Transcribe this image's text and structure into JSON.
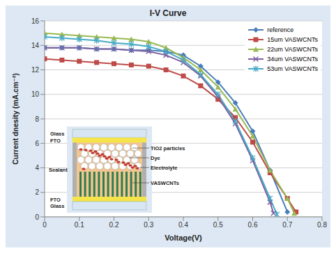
{
  "chart_data": {
    "type": "line",
    "title": "I-V Curve",
    "x_label": "Voltage(V)",
    "y_label": "Current dnesity (mA.cm⁻²)",
    "xlim": [
      0,
      0.8
    ],
    "xticks": [
      0,
      0.1,
      0.2,
      0.3,
      0.4,
      0.5,
      0.6,
      0.7,
      0.8
    ],
    "ylim": [
      0,
      16
    ],
    "yticks": [
      0,
      2,
      4,
      6,
      8,
      10,
      12,
      14,
      16
    ],
    "grid": true,
    "legend": "top-right",
    "annotations": [
      "Glass",
      "FTO",
      "Sealant",
      "TiO2 particles",
      "Dye",
      "Electrolyte",
      "VASWCNTs",
      "FTO",
      "Glass"
    ],
    "series": [
      {
        "name": "reference",
        "color": "#4A7EBB",
        "marker": "diamond",
        "x": [
          0,
          0.05,
          0.1,
          0.15,
          0.2,
          0.25,
          0.3,
          0.35,
          0.4,
          0.45,
          0.5,
          0.55,
          0.6,
          0.65,
          0.7
        ],
        "values": [
          13.8,
          13.8,
          13.8,
          13.7,
          13.7,
          13.6,
          13.6,
          13.5,
          13.2,
          12.3,
          11.0,
          9.3,
          7.0,
          3.8,
          0.4
        ]
      },
      {
        "name": "15um VASWCNTs",
        "color": "#BE4B48",
        "marker": "square",
        "x": [
          0,
          0.05,
          0.1,
          0.15,
          0.2,
          0.25,
          0.3,
          0.35,
          0.4,
          0.45,
          0.5,
          0.55,
          0.6,
          0.65,
          0.7,
          0.725
        ],
        "values": [
          12.9,
          12.8,
          12.7,
          12.6,
          12.5,
          12.4,
          12.3,
          12.0,
          11.5,
          10.7,
          9.6,
          8.1,
          6.1,
          3.6,
          1.5,
          0.4
        ]
      },
      {
        "name": "22um VASWCNTs",
        "color": "#98B954",
        "marker": "triangle",
        "x": [
          0,
          0.05,
          0.1,
          0.15,
          0.2,
          0.25,
          0.3,
          0.35,
          0.4,
          0.45,
          0.5,
          0.55,
          0.6,
          0.65,
          0.7,
          0.72
        ],
        "values": [
          15.0,
          14.9,
          14.8,
          14.7,
          14.6,
          14.5,
          14.3,
          13.8,
          13.0,
          12.0,
          10.6,
          8.8,
          6.6,
          3.8,
          1.5,
          0.3
        ]
      },
      {
        "name": "34um VASWCNTs",
        "color": "#7D60A0",
        "marker": "cross",
        "x": [
          0,
          0.05,
          0.1,
          0.15,
          0.2,
          0.25,
          0.3,
          0.35,
          0.4,
          0.45,
          0.5,
          0.55,
          0.6,
          0.65,
          0.66
        ],
        "values": [
          13.8,
          13.8,
          13.8,
          13.7,
          13.7,
          13.6,
          13.5,
          13.2,
          12.6,
          11.5,
          9.8,
          7.6,
          4.6,
          1.2,
          0.3
        ]
      },
      {
        "name": "53um VASWCNTs",
        "color": "#46AAC5",
        "marker": "star",
        "x": [
          0,
          0.05,
          0.1,
          0.15,
          0.2,
          0.25,
          0.3,
          0.35,
          0.4,
          0.45,
          0.5,
          0.55,
          0.6,
          0.65,
          0.67
        ],
        "values": [
          14.7,
          14.6,
          14.5,
          14.4,
          14.2,
          14.1,
          13.9,
          13.5,
          12.8,
          11.6,
          10.0,
          7.8,
          4.8,
          1.5,
          0.2
        ]
      }
    ]
  }
}
